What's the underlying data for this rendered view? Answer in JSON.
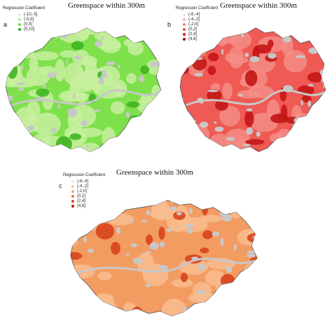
{
  "panels": [
    {
      "label": "a",
      "title": "Greenspace within 300m",
      "legend_title": "Regression Coefficient",
      "classes": [
        {
          "range": "(-10,-5]",
          "color": "#dff5cf"
        },
        {
          "range": "(-5,0]",
          "color": "#b6ec8e"
        },
        {
          "range": "(0,5]",
          "color": "#6fdc3a"
        },
        {
          "range": "(5,10]",
          "color": "#2f9e1a"
        }
      ],
      "fill": "#7ee04a",
      "patch": "#c7ef9f",
      "hot": "#3fb522"
    },
    {
      "label": "b",
      "title": "Greenspace within 300m",
      "legend_title": "Regression Coefficient",
      "classes": [
        {
          "range": "(-6,-4]",
          "color": "#fde0dd"
        },
        {
          "range": "(-4,-2]",
          "color": "#fbb4b0"
        },
        {
          "range": "(-2,0]",
          "color": "#f7857d"
        },
        {
          "range": "(0,2]",
          "color": "#ee4a44"
        },
        {
          "range": "(2,4]",
          "color": "#d11d1d"
        },
        {
          "range": "(4,6]",
          "color": "#8f0c0c"
        }
      ],
      "fill": "#ef5a55",
      "patch": "#f58d86",
      "hot": "#c41616"
    },
    {
      "label": "c",
      "title": "Greenspace within 300m",
      "legend_title": "Regression Coefficient",
      "classes": [
        {
          "range": "(-6,-4]",
          "color": "#fde6d6"
        },
        {
          "range": "(-4,-2]",
          "color": "#fbc8a4"
        },
        {
          "range": "(-2,0]",
          "color": "#f7a56f"
        },
        {
          "range": "(0,2]",
          "color": "#ef7a3f"
        },
        {
          "range": "(2,4]",
          "color": "#dc4a1f"
        },
        {
          "range": "(4,6]",
          "color": "#b3200e"
        }
      ],
      "fill": "#f39c62",
      "patch": "#f8bd8f",
      "hot": "#d9441d"
    }
  ],
  "nodata_color": "#c8c8c8"
}
